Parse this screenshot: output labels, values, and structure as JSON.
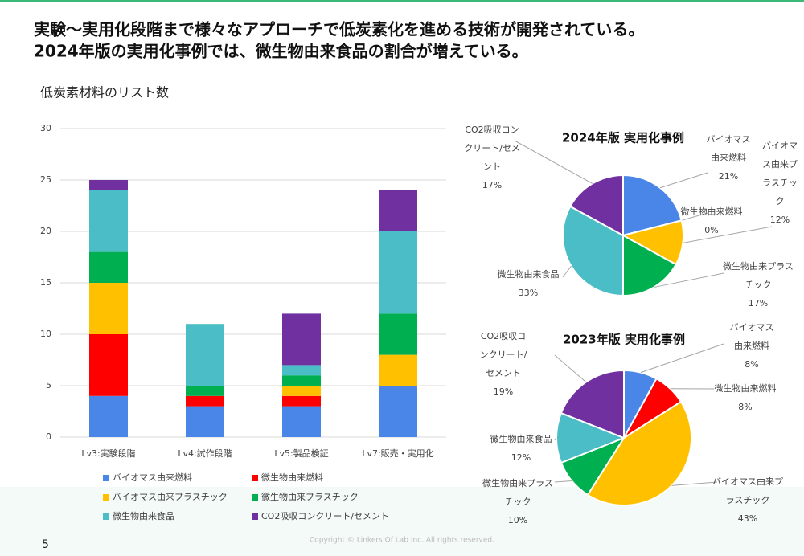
{
  "header": {
    "title_lines": [
      "実験〜実用化段階まで様々なアプローチで低炭素化を進める技術が開発されている。",
      "2024年版の実用化事例では、微生物由来食品の割合が増えている。"
    ]
  },
  "page_number": "5",
  "copyright": "Copyright © Linkers Of Lab Inc. All rights reserved.",
  "chart_data": [
    {
      "type": "bar",
      "stacked": true,
      "title": "低炭素材料のリスト数",
      "categories": [
        "Lv3:実験段階",
        "Lv4:試作段階",
        "Lv5:製品検証",
        "Lv7:販売・実用化"
      ],
      "series": [
        {
          "name": "バイオマス由来燃料",
          "color": "#4a86e8",
          "values": [
            4,
            3,
            3,
            5
          ]
        },
        {
          "name": "微生物由来燃料",
          "color": "#ff0000",
          "values": [
            6,
            1,
            1,
            0
          ]
        },
        {
          "name": "バイオマス由来プラスチック",
          "color": "#ffc000",
          "values": [
            5,
            0,
            1,
            3
          ]
        },
        {
          "name": "微生物由来プラスチック",
          "color": "#00b050",
          "values": [
            3,
            1,
            1,
            4
          ]
        },
        {
          "name": "微生物由来食品",
          "color": "#4bbdc6",
          "values": [
            6,
            6,
            1,
            8
          ]
        },
        {
          "name": "CO2吸収コンクリート/セメント",
          "color": "#7030a0",
          "values": [
            1,
            0,
            5,
            4
          ]
        }
      ],
      "ylim": [
        0,
        30
      ],
      "yticks": [
        0,
        5,
        10,
        15,
        20,
        25,
        30
      ],
      "grid": true,
      "legend": "bottom"
    },
    {
      "type": "pie",
      "title": "2024年版 実用化事例",
      "categories": [
        "バイオマス由来燃料",
        "微生物由来燃料",
        "バイオマス由来プラスチック",
        "微生物由来プラスチック",
        "微生物由来食品",
        "CO2吸収コンクリート/セメント"
      ],
      "values": [
        21,
        0,
        12,
        17,
        33,
        17
      ],
      "value_labels": [
        "21%",
        "0%",
        "12%",
        "17%",
        "33%",
        "17%"
      ],
      "colors": [
        "#4a86e8",
        "#ff0000",
        "#ffc000",
        "#00b050",
        "#4bbdc6",
        "#7030a0"
      ]
    },
    {
      "type": "pie",
      "title": "2023年版 実用化事例",
      "categories": [
        "バイオマス由来燃料",
        "微生物由来燃料",
        "バイオマス由来プラスチック",
        "微生物由来プラスチック",
        "微生物由来食品",
        "CO2吸収コンクリート/セメント"
      ],
      "values": [
        8,
        8,
        43,
        10,
        12,
        19
      ],
      "value_labels": [
        "8%",
        "8%",
        "43%",
        "10%",
        "12%",
        "19%"
      ],
      "colors": [
        "#4a86e8",
        "#ff0000",
        "#ffc000",
        "#00b050",
        "#4bbdc6",
        "#7030a0"
      ]
    }
  ]
}
